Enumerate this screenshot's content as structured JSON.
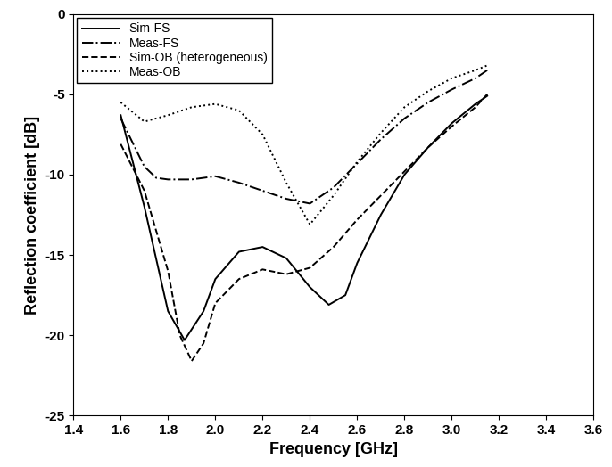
{
  "chart_data": {
    "type": "line",
    "x_label": "Frequency [GHz]",
    "y_label": "Reflection coefficient [dB]",
    "xlim": [
      1.4,
      3.6
    ],
    "xticks": [
      1.4,
      1.6,
      1.8,
      2.0,
      2.2,
      2.4,
      2.6,
      2.8,
      3.0,
      3.2,
      3.4,
      3.6
    ],
    "ylim": [
      -25,
      0
    ],
    "yticks": [
      -25,
      -20,
      -15,
      -10,
      -5,
      0
    ],
    "grid": false,
    "legend": "upper left",
    "series": [
      {
        "name": "Sim-FS",
        "color": "#000000",
        "line_style": "solid",
        "x": [
          1.6,
          1.7,
          1.8,
          1.87,
          1.95,
          2.0,
          2.1,
          2.2,
          2.3,
          2.4,
          2.48,
          2.55,
          2.6,
          2.7,
          2.8,
          2.9,
          3.0,
          3.1,
          3.15
        ],
        "values": [
          -6.3,
          -12.0,
          -18.5,
          -20.3,
          -18.5,
          -16.5,
          -14.8,
          -14.5,
          -15.2,
          -17.0,
          -18.1,
          -17.5,
          -15.5,
          -12.5,
          -10.0,
          -8.3,
          -6.8,
          -5.6,
          -5.1
        ]
      },
      {
        "name": "Meas-FS",
        "color": "#000000",
        "line_style": "dashdot",
        "x": [
          1.6,
          1.7,
          1.75,
          1.8,
          1.9,
          2.0,
          2.1,
          2.2,
          2.3,
          2.4,
          2.5,
          2.6,
          2.7,
          2.8,
          2.9,
          3.0,
          3.1,
          3.15
        ],
        "values": [
          -6.5,
          -9.5,
          -10.2,
          -10.3,
          -10.3,
          -10.1,
          -10.5,
          -11.0,
          -11.5,
          -11.8,
          -10.8,
          -9.3,
          -7.8,
          -6.5,
          -5.5,
          -4.7,
          -4.0,
          -3.5
        ]
      },
      {
        "name": "Sim-OB (heterogeneous)",
        "color": "#000000",
        "line_style": "dashed",
        "x": [
          1.6,
          1.7,
          1.8,
          1.85,
          1.9,
          1.95,
          2.0,
          2.1,
          2.2,
          2.3,
          2.4,
          2.5,
          2.6,
          2.7,
          2.8,
          2.9,
          3.0,
          3.1,
          3.15
        ],
        "values": [
          -8.1,
          -11.0,
          -16.0,
          -20.0,
          -21.6,
          -20.5,
          -18.0,
          -16.5,
          -15.9,
          -16.2,
          -15.8,
          -14.5,
          -12.8,
          -11.3,
          -9.8,
          -8.3,
          -7.0,
          -5.8,
          -5.0
        ]
      },
      {
        "name": "Meas-OB",
        "color": "#000000",
        "line_style": "dotted",
        "x": [
          1.6,
          1.7,
          1.8,
          1.9,
          2.0,
          2.1,
          2.2,
          2.3,
          2.4,
          2.5,
          2.6,
          2.7,
          2.8,
          2.9,
          3.0,
          3.1,
          3.15
        ],
        "values": [
          -5.5,
          -6.7,
          -6.3,
          -5.8,
          -5.6,
          -6.0,
          -7.5,
          -10.5,
          -13.1,
          -11.3,
          -9.2,
          -7.4,
          -5.8,
          -4.8,
          -4.0,
          -3.5,
          -3.2
        ]
      }
    ]
  }
}
